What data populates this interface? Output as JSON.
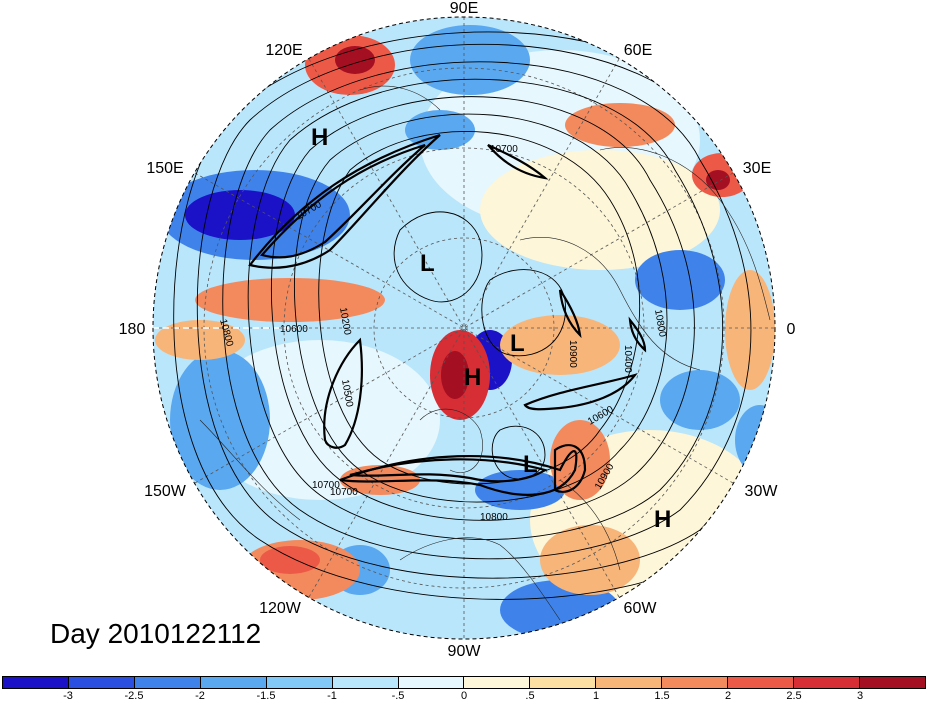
{
  "map": {
    "projection": "north-polar-stereographic",
    "longitude_labels": [
      "90E",
      "60E",
      "120E",
      "30E",
      "150E",
      "0",
      "180",
      "30W",
      "150W",
      "60W",
      "120W",
      "90W"
    ],
    "contour_labels": [
      "10700",
      "10700",
      "10700",
      "10800",
      "10600",
      "10500",
      "10200",
      "10900",
      "10800",
      "10900",
      "10600",
      "10800",
      "10700",
      "10400"
    ],
    "pressure_centers": [
      "H",
      "L",
      "L",
      "H",
      "L",
      "H"
    ]
  },
  "day_label": "Day 2010122112",
  "colorbar": {
    "colors": [
      "#1b12c8",
      "#2b4fe0",
      "#3f83ea",
      "#5aa8f0",
      "#83c9f7",
      "#b9e6fb",
      "#e6f7fd",
      "#fdf6d8",
      "#fbdfa3",
      "#f7b57a",
      "#f28a5e",
      "#ec5a47",
      "#d72d35",
      "#a50f22"
    ],
    "tick_labels": [
      "-3",
      "-2.5",
      "-2",
      "-1.5",
      "-1",
      "-.5",
      "0",
      ".5",
      "1",
      "1.5",
      "2",
      "2.5",
      "3"
    ]
  }
}
